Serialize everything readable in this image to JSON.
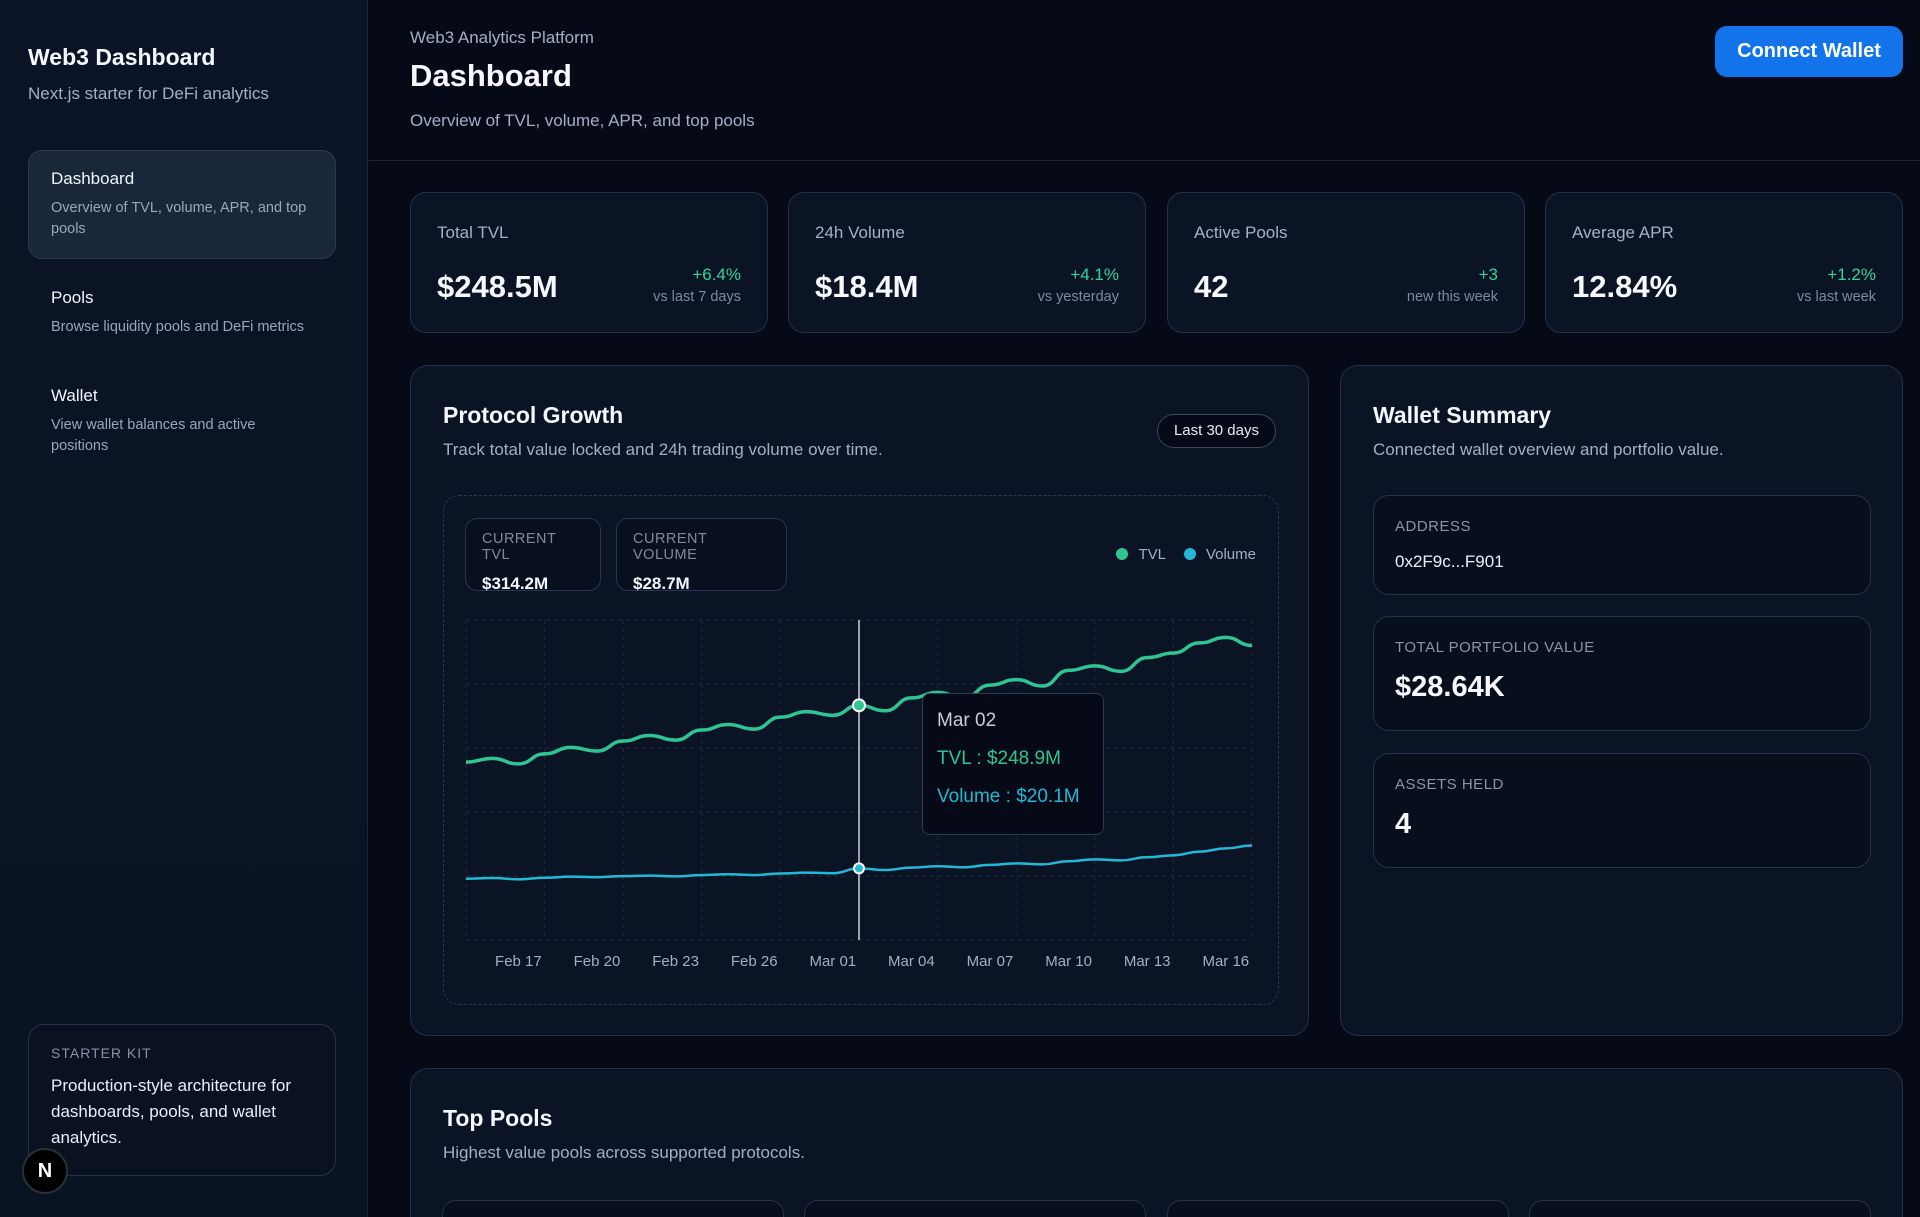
{
  "sidebar": {
    "brand_title": "Web3 Dashboard",
    "brand_sub": "Next.js starter for DeFi analytics",
    "items": [
      {
        "label": "Dashboard",
        "desc": "Overview of TVL, volume, APR, and top pools"
      },
      {
        "label": "Pools",
        "desc": "Browse liquidity pools and DeFi metrics"
      },
      {
        "label": "Wallet",
        "desc": "View wallet balances and active positions"
      }
    ],
    "starter_label": "STARTER KIT",
    "starter_text": "Production-style architecture for dashboards, pools, and wallet analytics.",
    "badge": "N"
  },
  "header": {
    "eyebrow": "Web3 Analytics Platform",
    "title": "Dashboard",
    "subtitle": "Overview of TVL, volume, APR, and top pools",
    "connect_label": "Connect Wallet"
  },
  "stats": [
    {
      "label": "Total TVL",
      "value": "$248.5M",
      "delta": "+6.4%",
      "note": "vs last 7 days"
    },
    {
      "label": "24h Volume",
      "value": "$18.4M",
      "delta": "+4.1%",
      "note": "vs yesterday"
    },
    {
      "label": "Active Pools",
      "value": "42",
      "delta": "+3",
      "note": "new this week"
    },
    {
      "label": "Average APR",
      "value": "12.84%",
      "delta": "+1.2%",
      "note": "vs last week"
    }
  ],
  "growth": {
    "title": "Protocol Growth",
    "subtitle": "Track total value locked and 24h trading volume over time.",
    "range": "Last 30 days",
    "current_tvl_label": "CURRENT TVL",
    "current_tvl_value": "$314.2M",
    "current_volume_label": "CURRENT VOLUME",
    "current_volume_value": "$28.7M",
    "legend_tvl": "TVL",
    "legend_volume": "Volume",
    "tooltip_date": "Mar 02",
    "tooltip_tvl": "TVL : $248.9M",
    "tooltip_volume": "Volume : $20.1M"
  },
  "colors": {
    "tvl": "#2fc592",
    "volume": "#22b8d6",
    "accent": "#1273ea"
  },
  "chart_data": {
    "type": "line",
    "x": [
      "Feb 15",
      "Feb 16",
      "Feb 17",
      "Feb 18",
      "Feb 19",
      "Feb 20",
      "Feb 21",
      "Feb 22",
      "Feb 23",
      "Feb 24",
      "Feb 25",
      "Feb 26",
      "Feb 27",
      "Feb 28",
      "Mar 01",
      "Mar 02",
      "Mar 03",
      "Mar 04",
      "Mar 05",
      "Mar 06",
      "Mar 07",
      "Mar 08",
      "Mar 09",
      "Mar 10",
      "Mar 11",
      "Mar 12",
      "Mar 13",
      "Mar 14",
      "Mar 15",
      "Mar 16",
      "Mar 17"
    ],
    "tick_labels": [
      "Feb 17",
      "Feb 20",
      "Feb 23",
      "Feb 26",
      "Mar 01",
      "Mar 04",
      "Mar 07",
      "Mar 10",
      "Mar 13",
      "Mar 16"
    ],
    "series": [
      {
        "name": "TVL",
        "values": [
          187,
          191,
          185,
          196,
          203,
          199,
          210,
          216,
          211,
          222,
          228,
          223,
          236,
          242,
          238,
          248.9,
          243,
          257,
          263,
          257,
          271,
          277,
          270,
          287,
          292,
          286,
          301,
          306,
          317,
          323,
          314.2
        ]
      },
      {
        "name": "Volume",
        "values": [
          16.2,
          16.5,
          16.0,
          16.6,
          17.0,
          16.8,
          17.2,
          17.4,
          17.1,
          17.6,
          17.9,
          17.6,
          18.2,
          18.5,
          18.3,
          20.1,
          19.5,
          20.4,
          20.9,
          20.5,
          21.4,
          22.0,
          21.6,
          22.8,
          23.5,
          23.1,
          24.3,
          25.0,
          26.4,
          27.6,
          28.7
        ]
      }
    ],
    "ylim": [
      0,
      340
    ],
    "grid": true,
    "legend": "top-right",
    "hover_index": 15
  },
  "wallet": {
    "title": "Wallet Summary",
    "subtitle": "Connected wallet overview and portfolio value.",
    "address_label": "ADDRESS",
    "address": "0x2F9c...F901",
    "portfolio_label": "TOTAL PORTFOLIO VALUE",
    "portfolio_value": "$28.64K",
    "assets_label": "ASSETS HELD",
    "assets_value": "4"
  },
  "top_pools": {
    "title": "Top Pools",
    "subtitle": "Highest value pools across supported protocols."
  }
}
